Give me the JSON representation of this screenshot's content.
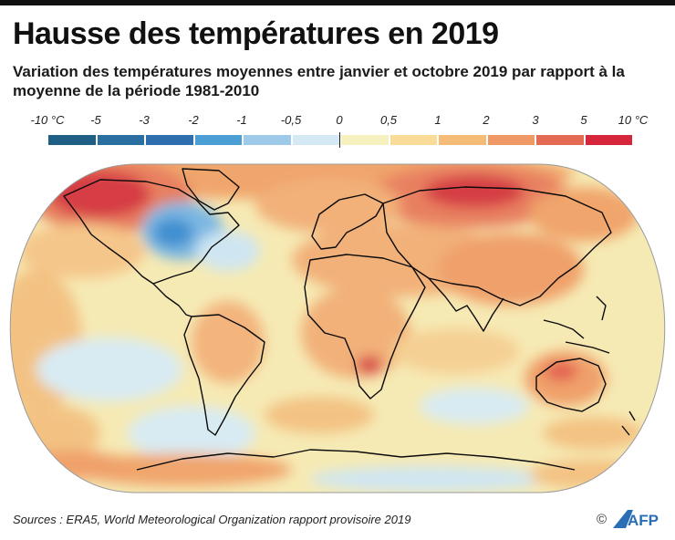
{
  "header": {
    "title": "Hausse des températures en 2019",
    "subtitle": "Variation des températures moyennes entre janvier et octobre 2019 par rapport à la moyenne de la période 1981-2010"
  },
  "legend": {
    "labels": [
      "-10 °C",
      "-5",
      "-3",
      "-2",
      "-1",
      "-0,5",
      "0",
      "0,5",
      "1",
      "2",
      "3",
      "5",
      "10 °C"
    ],
    "colors": [
      "#1f5f86",
      "#2a6fa0",
      "#2f6fae",
      "#4b9fd4",
      "#9dcae8",
      "#d4e9f3",
      "#f7f1c0",
      "#f8dc97",
      "#f5bc78",
      "#ef9a66",
      "#e56a53",
      "#d6263b",
      "#c02a30"
    ]
  },
  "map": {
    "ocean_color": "#f6eab4",
    "coastline_color": "#0a0a0a"
  },
  "footer": {
    "source": "Sources : ERA5, World Meteorological Organization rapport provisoire 2019",
    "copyright": "©",
    "logo": "AFP"
  }
}
